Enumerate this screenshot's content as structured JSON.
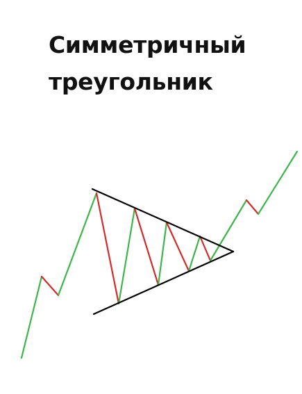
{
  "title": {
    "line1": "Симметричный",
    "line2": "треугольник"
  },
  "colors": {
    "background": "#ffffff",
    "text": "#111111",
    "up_move": "#3cb54a",
    "down_move": "#d42a2a",
    "trendline": "#000000"
  }
}
